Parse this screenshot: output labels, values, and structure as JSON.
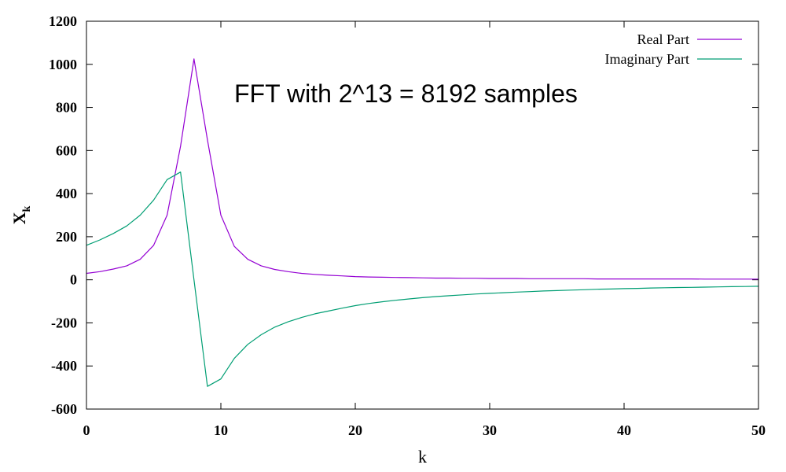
{
  "chart_data": {
    "type": "line",
    "title": "",
    "annotation": "FFT with 2^13 = 8192 samples",
    "xlabel": "k",
    "ylabel": "X",
    "ylabel_sub": "k",
    "xlim": [
      0,
      50
    ],
    "ylim": [
      -600,
      1200
    ],
    "xticks": [
      0,
      10,
      20,
      30,
      40,
      50
    ],
    "yticks": [
      -600,
      -400,
      -200,
      0,
      200,
      400,
      600,
      800,
      1000,
      1200
    ],
    "grid": false,
    "legend_position": "top-right",
    "series": [
      {
        "name": "Real Part",
        "color": "#9400d3",
        "x": [
          0,
          1,
          2,
          3,
          4,
          5,
          6,
          7,
          8,
          9,
          10,
          11,
          12,
          13,
          14,
          15,
          16,
          17,
          18,
          19,
          20,
          21,
          22,
          23,
          24,
          25,
          26,
          27,
          28,
          29,
          30,
          31,
          32,
          33,
          34,
          35,
          36,
          37,
          38,
          39,
          40,
          41,
          42,
          43,
          44,
          45,
          46,
          47,
          48,
          49,
          50
        ],
        "y": [
          30,
          38,
          50,
          65,
          95,
          160,
          300,
          620,
          1025,
          650,
          300,
          155,
          95,
          65,
          48,
          38,
          30,
          25,
          21,
          18,
          15,
          13,
          12,
          11,
          10,
          9,
          8,
          8,
          7,
          7,
          6,
          6,
          6,
          5,
          5,
          5,
          5,
          5,
          4,
          4,
          4,
          4,
          4,
          4,
          4,
          4,
          3,
          3,
          3,
          3,
          3
        ]
      },
      {
        "name": "Imaginary Part",
        "color": "#009e73",
        "x": [
          0,
          1,
          2,
          3,
          4,
          5,
          6,
          7,
          8,
          9,
          10,
          11,
          12,
          13,
          14,
          15,
          16,
          17,
          18,
          19,
          20,
          21,
          22,
          23,
          24,
          25,
          26,
          27,
          28,
          29,
          30,
          31,
          32,
          33,
          34,
          35,
          36,
          37,
          38,
          39,
          40,
          41,
          42,
          43,
          44,
          45,
          46,
          47,
          48,
          49,
          50
        ],
        "y": [
          160,
          185,
          215,
          250,
          300,
          370,
          465,
          500,
          0,
          -495,
          -460,
          -365,
          -300,
          -255,
          -220,
          -195,
          -175,
          -158,
          -145,
          -132,
          -120,
          -110,
          -102,
          -95,
          -89,
          -83,
          -78,
          -74,
          -70,
          -66,
          -63,
          -60,
          -57,
          -55,
          -52,
          -50,
          -48,
          -46,
          -44,
          -43,
          -41,
          -40,
          -38,
          -37,
          -36,
          -35,
          -34,
          -33,
          -32,
          -31,
          -30
        ]
      }
    ]
  }
}
